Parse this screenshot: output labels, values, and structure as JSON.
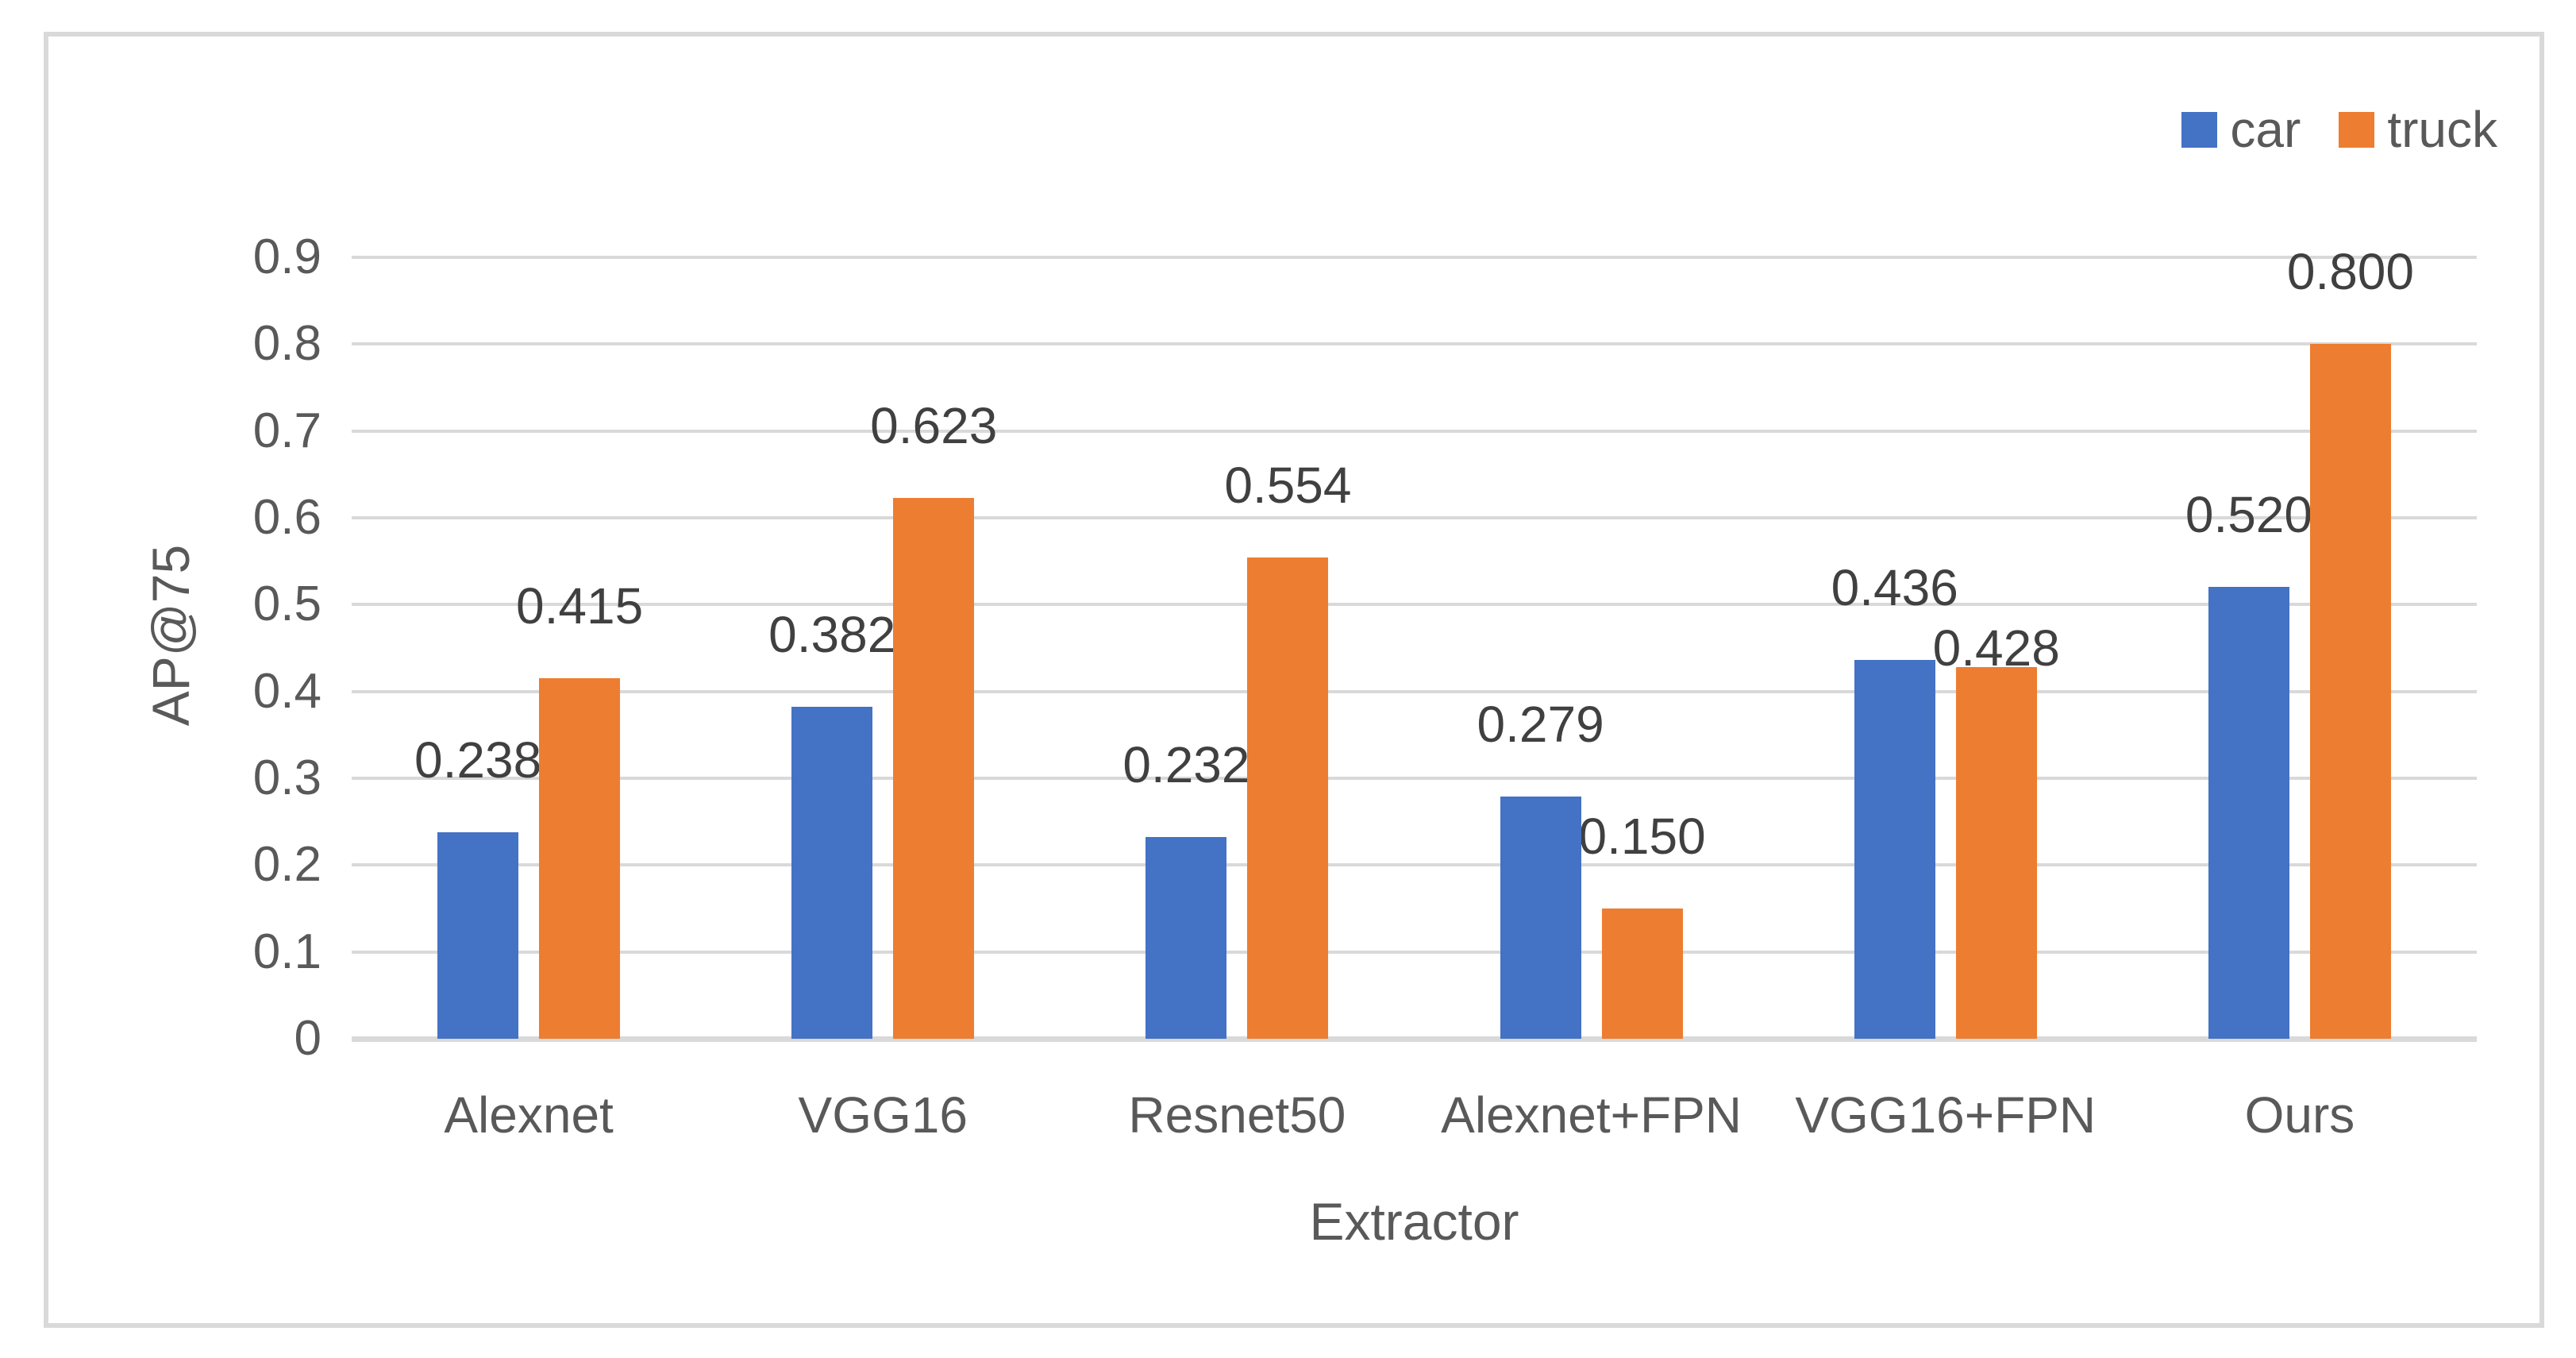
{
  "chart_data": {
    "type": "bar",
    "title": "",
    "categories": [
      "Alexnet",
      "VGG16",
      "Resnet50",
      "Alexnet+FPN",
      "VGG16+FPN",
      "Ours"
    ],
    "series": [
      {
        "name": "car",
        "color": "#4472C4",
        "values": [
          0.238,
          0.382,
          0.232,
          0.279,
          0.436,
          0.52
        ],
        "labels": [
          "0.238",
          "0.382",
          "0.232",
          "0.279",
          "0.436",
          "0.520"
        ]
      },
      {
        "name": "truck",
        "color": "#ED7D31",
        "values": [
          0.415,
          0.623,
          0.554,
          0.15,
          0.428,
          0.8
        ],
        "labels": [
          "0.415",
          "0.623",
          "0.554",
          "0.150",
          "0.428",
          "0.800"
        ]
      }
    ],
    "xlabel": "Extractor",
    "ylabel": "AP@75",
    "ylim": [
      0,
      0.9
    ],
    "ytick_values": [
      0,
      0.1,
      0.2,
      0.3,
      0.4,
      0.5,
      0.6,
      0.7,
      0.8,
      0.9
    ],
    "ytick_labels": [
      "0",
      "0.1",
      "0.2",
      "0.3",
      "0.4",
      "0.5",
      "0.6",
      "0.7",
      "0.8",
      "0.9"
    ],
    "grid": true,
    "legend_position": "top-right",
    "colors": {
      "gridline": "#D9D9D9",
      "axis_line": "#D9D9D9",
      "frame_border": "#D9D9D9",
      "data_label_text": "#404040",
      "axis_text": "#595959",
      "background": "#FFFFFF"
    }
  }
}
